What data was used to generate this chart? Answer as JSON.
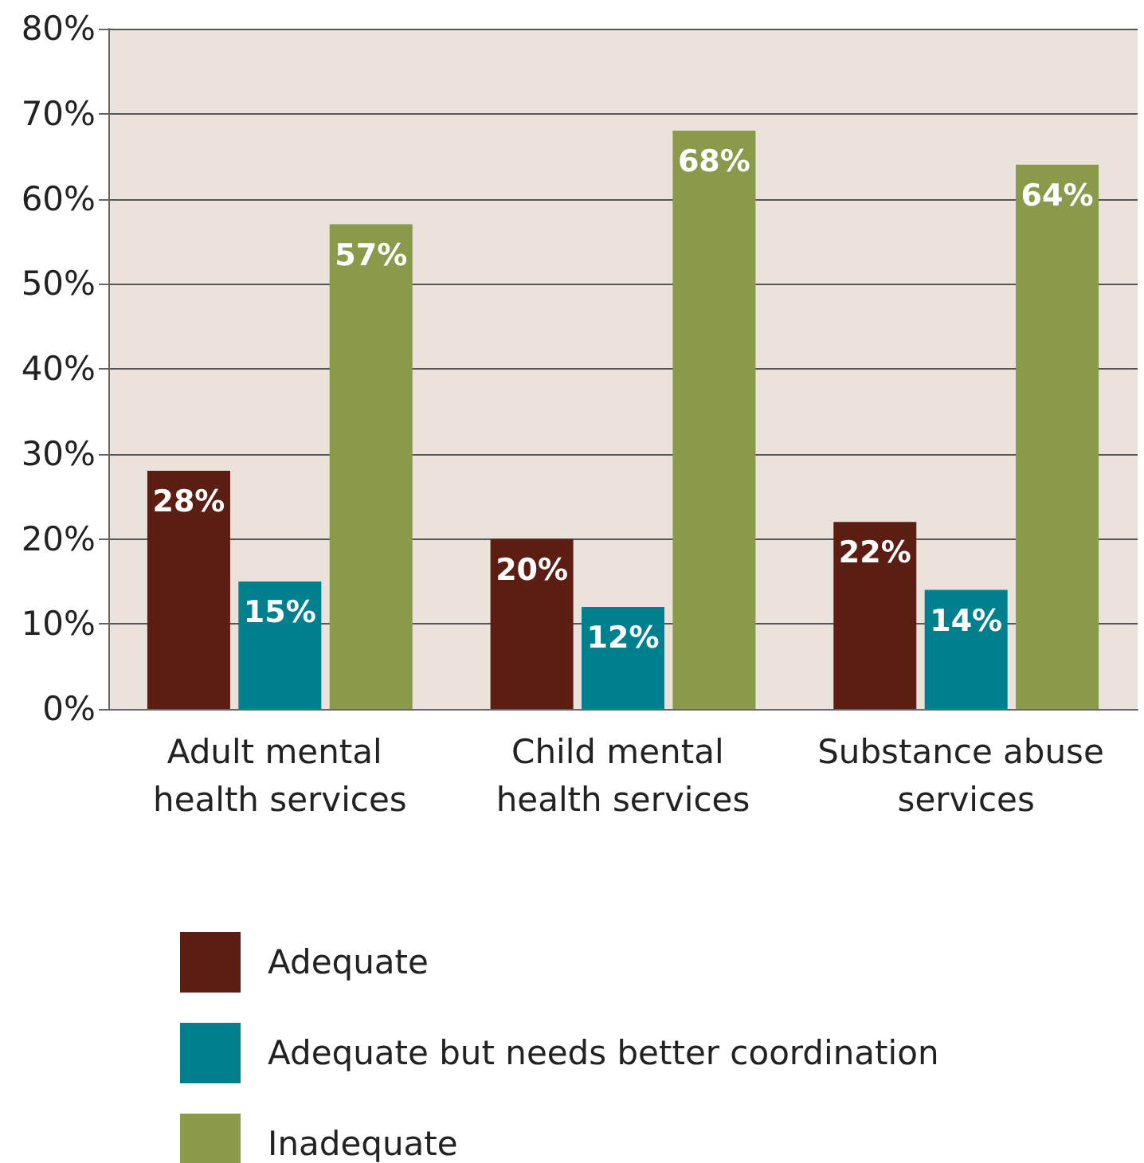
{
  "chart_data": {
    "type": "bar",
    "categories": [
      "Adult mental health services",
      "Child mental health services",
      "Substance abuse services"
    ],
    "series": [
      {
        "name": "Adequate",
        "color": "#5c1e12",
        "values": [
          28,
          20,
          22
        ],
        "value_labels": [
          "28%",
          "20%",
          "22%"
        ]
      },
      {
        "name": "Adequate but needs better coordination",
        "color": "#00808e",
        "values": [
          15,
          12,
          14
        ],
        "value_labels": [
          "15%",
          "12%",
          "14%"
        ]
      },
      {
        "name": "Inadequate",
        "color": "#8a9a4b",
        "values": [
          57,
          68,
          64
        ],
        "value_labels": [
          "57%",
          "68%",
          "64%"
        ]
      }
    ],
    "ylim": [
      0,
      80
    ],
    "yticks": [
      {
        "value": 0,
        "label": "0%"
      },
      {
        "value": 10,
        "label": "10%"
      },
      {
        "value": 20,
        "label": "20%"
      },
      {
        "value": 30,
        "label": "30%"
      },
      {
        "value": 40,
        "label": "40%"
      },
      {
        "value": 50,
        "label": "50%"
      },
      {
        "value": 60,
        "label": "60%"
      },
      {
        "value": 70,
        "label": "70%"
      },
      {
        "value": 80,
        "label": "80%"
      }
    ],
    "grid": true,
    "legend": "bottom"
  }
}
